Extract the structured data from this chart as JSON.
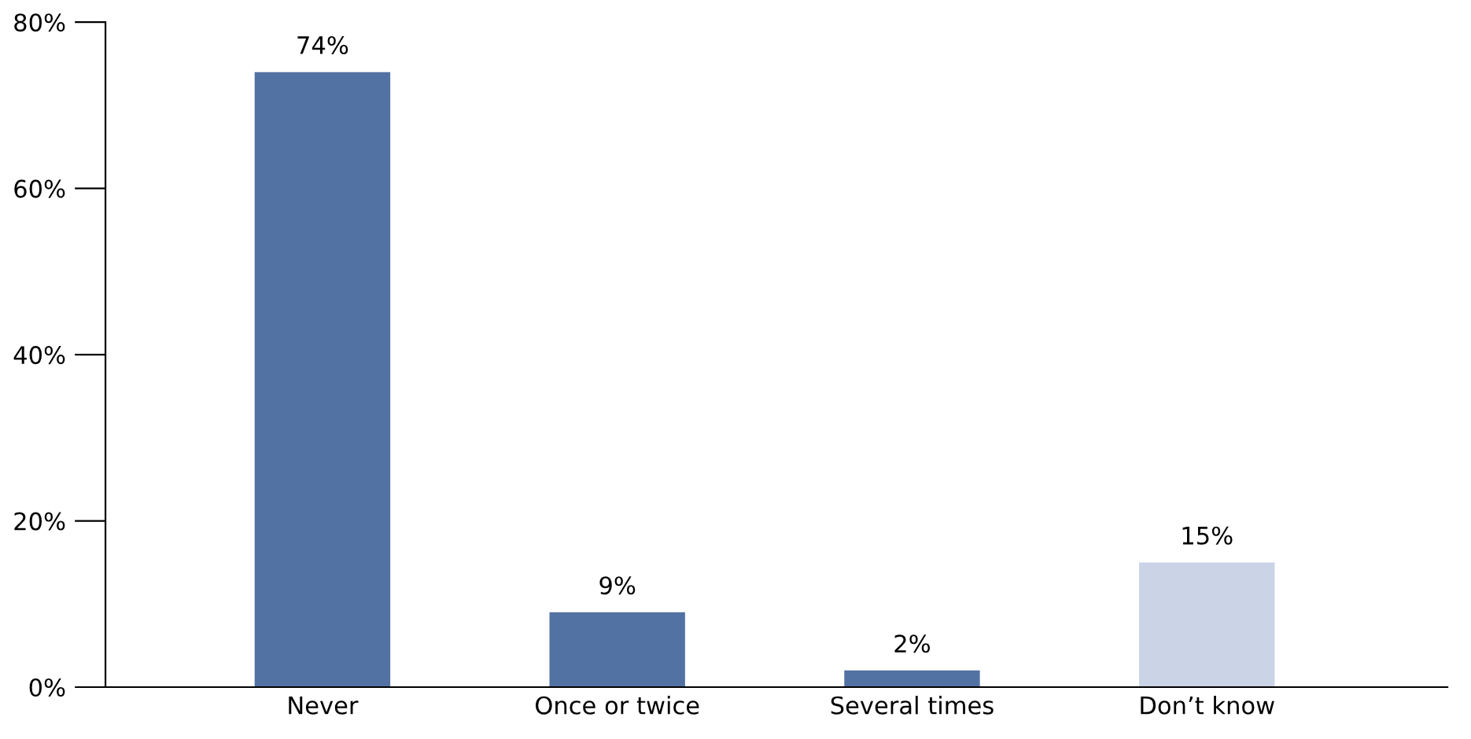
{
  "chart_data": {
    "type": "bar",
    "categories": [
      "Never",
      "Once or twice",
      "Several times",
      "Don’t know"
    ],
    "values": [
      74,
      9,
      2,
      15
    ],
    "colors": [
      "#5372a4",
      "#5372a4",
      "#5372a4",
      "#cad4e6"
    ],
    "value_labels": [
      "74%",
      "9%",
      "2%",
      "15%"
    ],
    "ylim": [
      0,
      80
    ],
    "yticks": [
      {
        "value": 0,
        "label": "0%"
      },
      {
        "value": 20,
        "label": "20%"
      },
      {
        "value": 40,
        "label": "40%"
      },
      {
        "value": 60,
        "label": "60%"
      },
      {
        "value": 80,
        "label": "80%"
      }
    ],
    "grid": false,
    "legend": false
  }
}
